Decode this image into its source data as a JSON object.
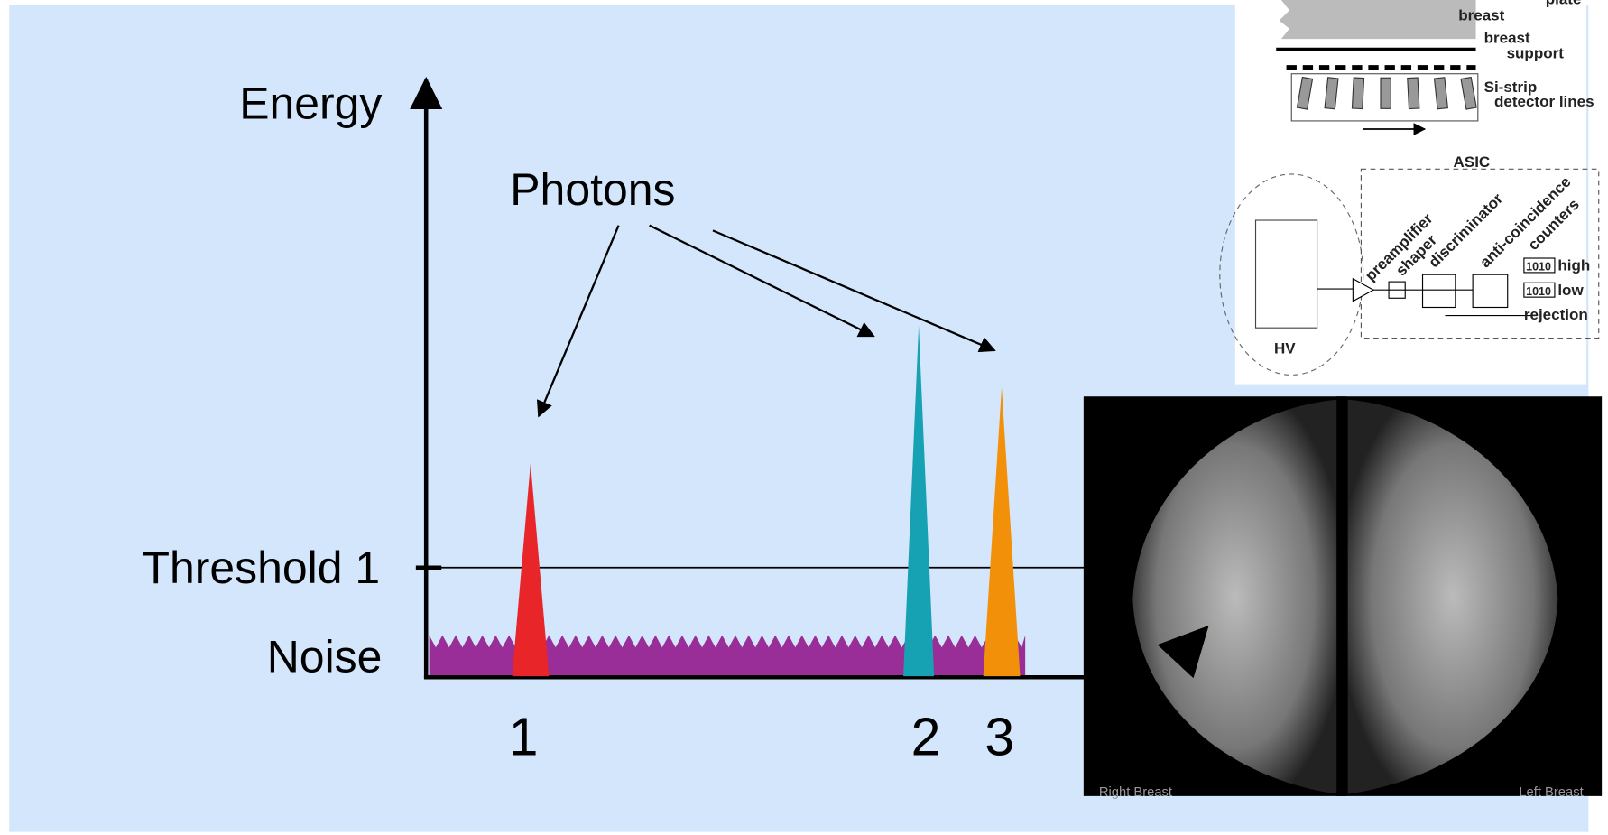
{
  "diagram": {
    "axis_label": "Energy",
    "photons_label": "Photons",
    "threshold_label": "Threshold 1",
    "noise_label": "Noise",
    "peaks": [
      "1",
      "2",
      "3"
    ],
    "detector_inset": {
      "plate": "plate",
      "breast": "breast",
      "breast_support": [
        "breast",
        "support"
      ],
      "si_strip": [
        "Si-strip",
        "detector lines"
      ],
      "asic": "ASIC",
      "stages": [
        "preamplifier",
        "shaper",
        "discriminator",
        "anti-coincidence",
        "counters"
      ],
      "counter_values": [
        "1010",
        "1010"
      ],
      "outputs": [
        "high",
        "low",
        "rejection"
      ],
      "hv": "HV"
    },
    "mammogram": {
      "left_caption": "Right Breast",
      "right_caption": "Left Breast"
    }
  }
}
